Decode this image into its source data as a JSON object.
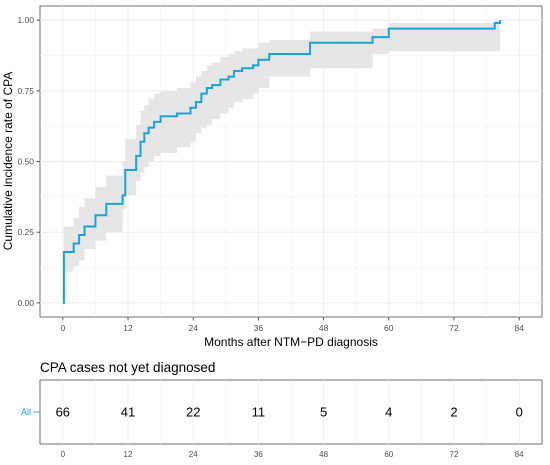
{
  "chart_data": [
    {
      "type": "line",
      "subtype": "kaplan-meier-step",
      "title": "",
      "xlabel": "Months after NTM−PD diagnosis",
      "ylabel": "Cumulative incidence rate of CPA",
      "xlim": [
        0,
        84
      ],
      "ylim": [
        0,
        1
      ],
      "xticks": [
        0,
        12,
        24,
        36,
        48,
        60,
        72,
        84
      ],
      "yticks": [
        0,
        0.25,
        0.5,
        0.75,
        1.0
      ],
      "ytick_labels": [
        "0.00",
        "0.25",
        "0.50",
        "0.75",
        "1.00"
      ],
      "grid": true,
      "series": [
        {
          "color": "#1aa3d6",
          "band_color": "#e6e6e6",
          "points": [
            {
              "x": 0,
              "y": 0.0,
              "lo": 0.0,
              "hi": 0.0
            },
            {
              "x": 0.2,
              "y": 0.18,
              "lo": 0.09,
              "hi": 0.27
            },
            {
              "x": 2.0,
              "y": 0.21,
              "lo": 0.11,
              "hi": 0.3
            },
            {
              "x": 3.0,
              "y": 0.24,
              "lo": 0.13,
              "hi": 0.34
            },
            {
              "x": 4.0,
              "y": 0.27,
              "lo": 0.15,
              "hi": 0.37
            },
            {
              "x": 6.0,
              "y": 0.31,
              "lo": 0.19,
              "hi": 0.41
            },
            {
              "x": 8.0,
              "y": 0.35,
              "lo": 0.22,
              "hi": 0.45
            },
            {
              "x": 11.0,
              "y": 0.38,
              "lo": 0.25,
              "hi": 0.5
            },
            {
              "x": 11.5,
              "y": 0.47,
              "lo": 0.33,
              "hi": 0.58
            },
            {
              "x": 13.5,
              "y": 0.52,
              "lo": 0.38,
              "hi": 0.63
            },
            {
              "x": 14.3,
              "y": 0.57,
              "lo": 0.43,
              "hi": 0.68
            },
            {
              "x": 15.0,
              "y": 0.6,
              "lo": 0.46,
              "hi": 0.7
            },
            {
              "x": 15.8,
              "y": 0.62,
              "lo": 0.48,
              "hi": 0.72
            },
            {
              "x": 16.8,
              "y": 0.64,
              "lo": 0.5,
              "hi": 0.74
            },
            {
              "x": 18.0,
              "y": 0.66,
              "lo": 0.52,
              "hi": 0.75
            },
            {
              "x": 21.0,
              "y": 0.67,
              "lo": 0.53,
              "hi": 0.76
            },
            {
              "x": 23.5,
              "y": 0.69,
              "lo": 0.55,
              "hi": 0.78
            },
            {
              "x": 24.5,
              "y": 0.71,
              "lo": 0.57,
              "hi": 0.8
            },
            {
              "x": 25.5,
              "y": 0.74,
              "lo": 0.6,
              "hi": 0.82
            },
            {
              "x": 26.5,
              "y": 0.76,
              "lo": 0.62,
              "hi": 0.84
            },
            {
              "x": 27.5,
              "y": 0.77,
              "lo": 0.63,
              "hi": 0.85
            },
            {
              "x": 29.0,
              "y": 0.79,
              "lo": 0.65,
              "hi": 0.87
            },
            {
              "x": 30.5,
              "y": 0.8,
              "lo": 0.67,
              "hi": 0.88
            },
            {
              "x": 31.5,
              "y": 0.82,
              "lo": 0.69,
              "hi": 0.89
            },
            {
              "x": 33.0,
              "y": 0.83,
              "lo": 0.71,
              "hi": 0.9
            },
            {
              "x": 35.0,
              "y": 0.84,
              "lo": 0.72,
              "hi": 0.9
            },
            {
              "x": 36.0,
              "y": 0.86,
              "lo": 0.74,
              "hi": 0.92
            },
            {
              "x": 38.0,
              "y": 0.88,
              "lo": 0.76,
              "hi": 0.93
            },
            {
              "x": 45.5,
              "y": 0.92,
              "lo": 0.8,
              "hi": 0.96
            },
            {
              "x": 57.0,
              "y": 0.94,
              "lo": 0.83,
              "hi": 0.97
            },
            {
              "x": 60.0,
              "y": 0.97,
              "lo": 0.88,
              "hi": 0.99
            },
            {
              "x": 79.5,
              "y": 0.99,
              "lo": 0.89,
              "hi": 1.0
            },
            {
              "x": 80.5,
              "y": 1.0,
              "lo": 0.89,
              "hi": 1.0
            }
          ]
        }
      ]
    },
    {
      "type": "table",
      "title": "CPA cases not yet diagnosed",
      "row_label": "All",
      "xticks": [
        0,
        12,
        24,
        36,
        48,
        60,
        72,
        84
      ],
      "values": [
        66,
        41,
        22,
        11,
        5,
        4,
        2,
        0
      ]
    }
  ]
}
